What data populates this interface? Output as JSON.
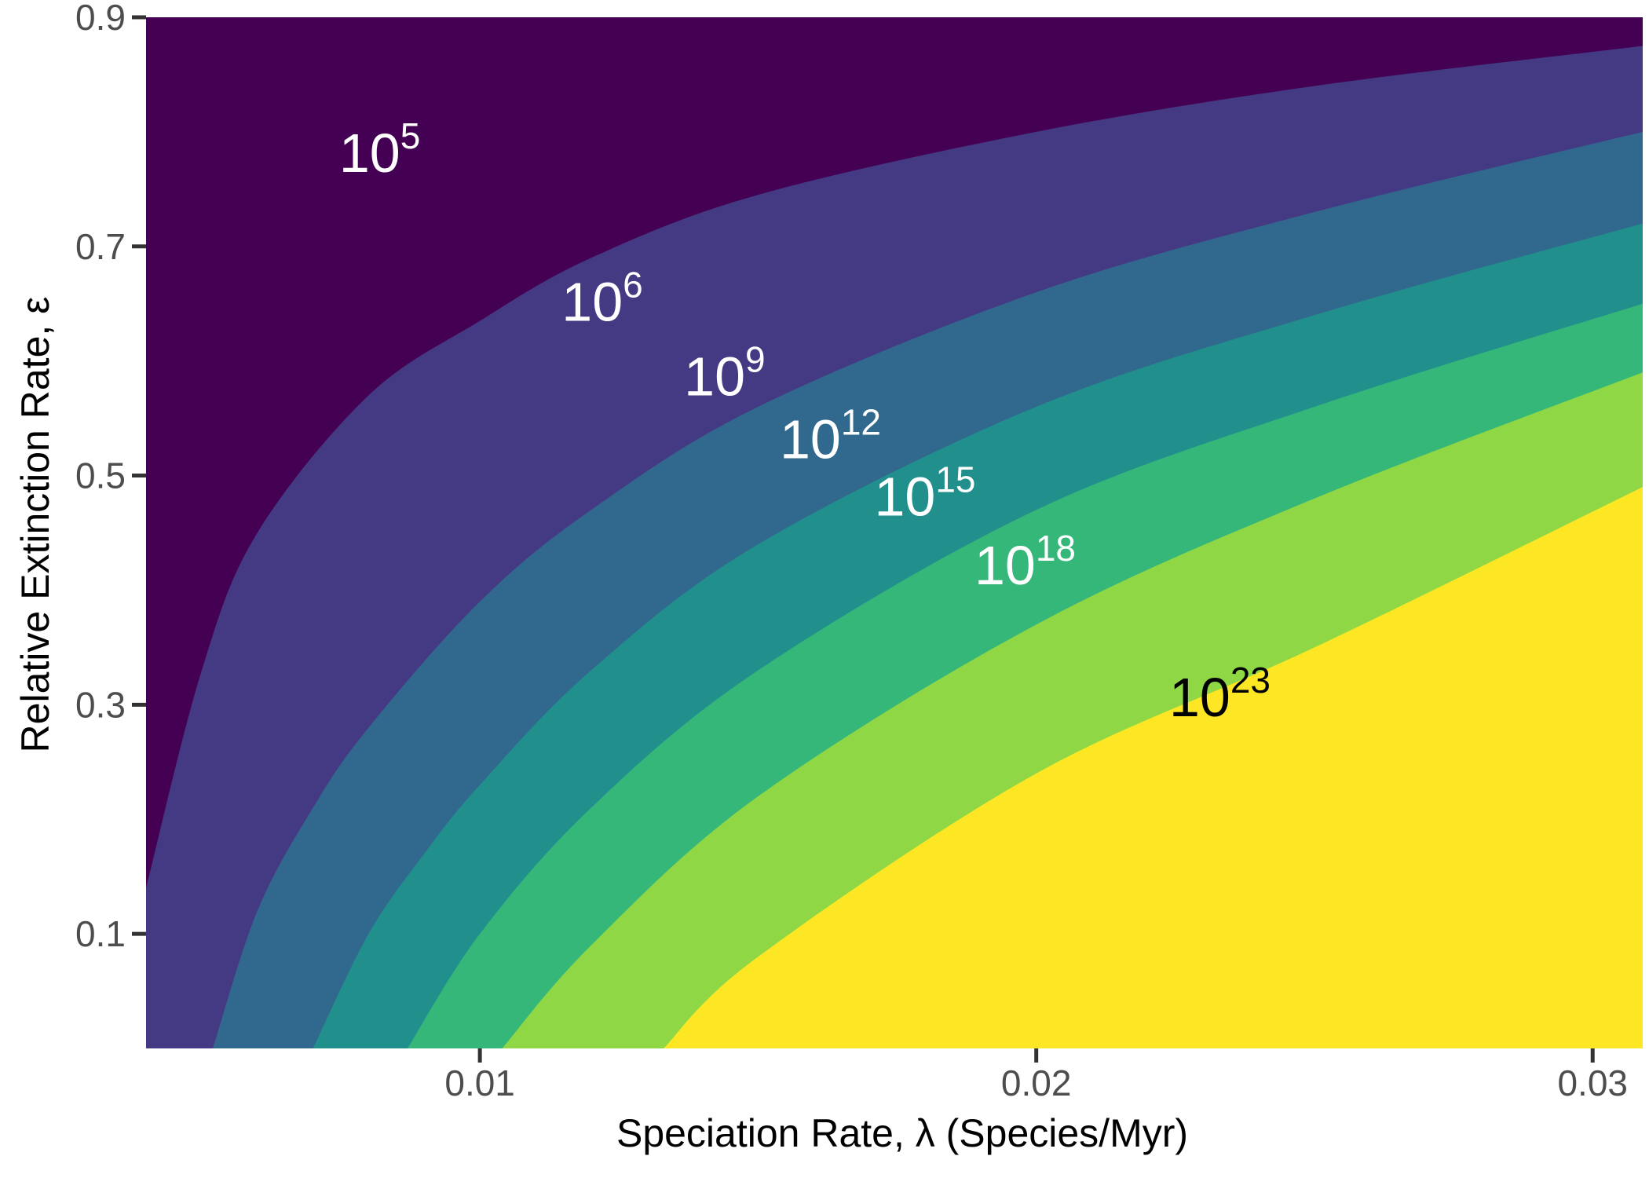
{
  "chart_data": {
    "type": "contour",
    "xlabel": "Speciation Rate, λ (Species/Myr)",
    "ylabel": "Relative Extinction Rate, ε",
    "xlim": [
      0.004,
      0.0309
    ],
    "ylim": [
      0.0,
      0.9
    ],
    "x_ticks": [
      {
        "value": 0.01,
        "label": "0.01"
      },
      {
        "value": 0.02,
        "label": "0.02"
      },
      {
        "value": 0.03,
        "label": "0.03"
      }
    ],
    "y_ticks": [
      {
        "value": 0.1,
        "label": "0.1"
      },
      {
        "value": 0.3,
        "label": "0.3"
      },
      {
        "value": 0.5,
        "label": "0.5"
      },
      {
        "value": 0.7,
        "label": "0.7"
      },
      {
        "value": 0.9,
        "label": "0.9"
      }
    ],
    "grid": false,
    "bands": [
      {
        "base": "10",
        "exponent": "5",
        "color": "#440154",
        "label_color": "#ffffff",
        "label_at": [
          0.0082,
          0.765
        ]
      },
      {
        "base": "10",
        "exponent": "6",
        "color": "#443a83",
        "label_color": "#ffffff",
        "label_at": [
          0.0122,
          0.635
        ]
      },
      {
        "base": "10",
        "exponent": "9",
        "color": "#31688e",
        "label_color": "#ffffff",
        "label_at": [
          0.0144,
          0.57
        ]
      },
      {
        "base": "10",
        "exponent": "12",
        "color": "#21908d",
        "label_color": "#ffffff",
        "label_at": [
          0.0163,
          0.515
        ]
      },
      {
        "base": "10",
        "exponent": "15",
        "color": "#35b779",
        "label_color": "#ffffff",
        "label_at": [
          0.018,
          0.465
        ]
      },
      {
        "base": "10",
        "exponent": "18",
        "color": "#8fd744",
        "label_color": "#ffffff",
        "label_at": [
          0.0198,
          0.405
        ]
      },
      {
        "base": "10",
        "exponent": "23",
        "color": "#fde725",
        "label_color": "#000000",
        "label_at": [
          0.0233,
          0.29
        ]
      }
    ],
    "boundaries": [
      [
        [
          0.004,
          0.14
        ],
        [
          0.005,
          0.33
        ],
        [
          0.006,
          0.45
        ],
        [
          0.008,
          0.57
        ],
        [
          0.01,
          0.635
        ],
        [
          0.012,
          0.69
        ],
        [
          0.015,
          0.745
        ],
        [
          0.02,
          0.8
        ],
        [
          0.025,
          0.84
        ],
        [
          0.0309,
          0.875
        ]
      ],
      [
        [
          0.0052,
          0.0
        ],
        [
          0.006,
          0.12
        ],
        [
          0.007,
          0.21
        ],
        [
          0.008,
          0.28
        ],
        [
          0.01,
          0.39
        ],
        [
          0.012,
          0.47
        ],
        [
          0.015,
          0.56
        ],
        [
          0.02,
          0.66
        ],
        [
          0.025,
          0.73
        ],
        [
          0.0309,
          0.8
        ]
      ],
      [
        [
          0.007,
          0.0
        ],
        [
          0.008,
          0.1
        ],
        [
          0.009,
          0.17
        ],
        [
          0.01,
          0.23
        ],
        [
          0.012,
          0.33
        ],
        [
          0.015,
          0.44
        ],
        [
          0.02,
          0.56
        ],
        [
          0.025,
          0.64
        ],
        [
          0.0309,
          0.72
        ]
      ],
      [
        [
          0.0087,
          0.0
        ],
        [
          0.01,
          0.1
        ],
        [
          0.012,
          0.21
        ],
        [
          0.015,
          0.33
        ],
        [
          0.02,
          0.47
        ],
        [
          0.025,
          0.56
        ],
        [
          0.0309,
          0.65
        ]
      ],
      [
        [
          0.0104,
          0.0
        ],
        [
          0.012,
          0.09
        ],
        [
          0.015,
          0.22
        ],
        [
          0.02,
          0.37
        ],
        [
          0.025,
          0.48
        ],
        [
          0.0309,
          0.59
        ]
      ],
      [
        [
          0.0133,
          0.0
        ],
        [
          0.015,
          0.08
        ],
        [
          0.02,
          0.24
        ],
        [
          0.025,
          0.35
        ],
        [
          0.0309,
          0.49
        ]
      ]
    ]
  }
}
